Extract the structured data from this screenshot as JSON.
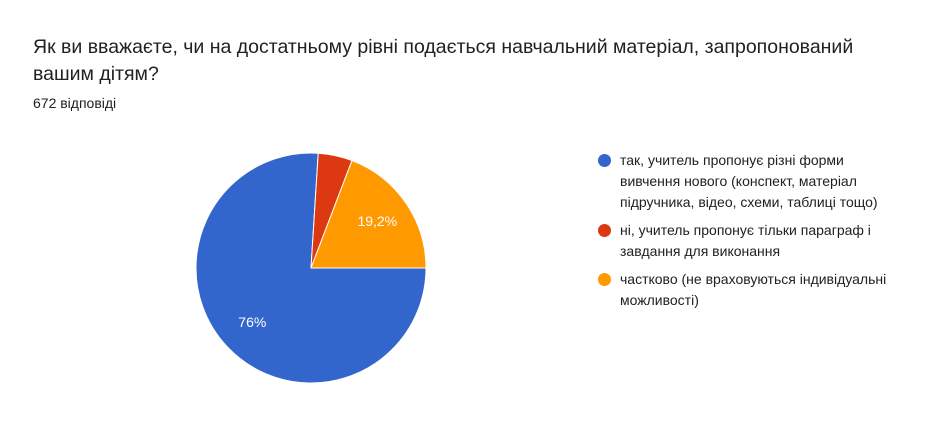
{
  "chart_data": {
    "type": "pie",
    "title": "Як ви вважаєте, чи на достатньому рівні подається навчальний матеріал, запропонований вашим дітям?",
    "subtitle": "672 відповіді",
    "categories": [
      "так, учитель пропонує різні форми вивчення нового (конспект, матеріал підручника, відео, схеми, таблиці тощо)",
      "ні, учитель пропонує тільки параграф і завдання для виконання",
      "частково (не враховуються індивідуальні можливості)"
    ],
    "values": [
      76,
      4.8,
      19.2
    ],
    "value_labels": [
      "76%",
      null,
      "19,2%"
    ],
    "colors": [
      "#3366cc",
      "#dc3912",
      "#ff9900"
    ]
  }
}
